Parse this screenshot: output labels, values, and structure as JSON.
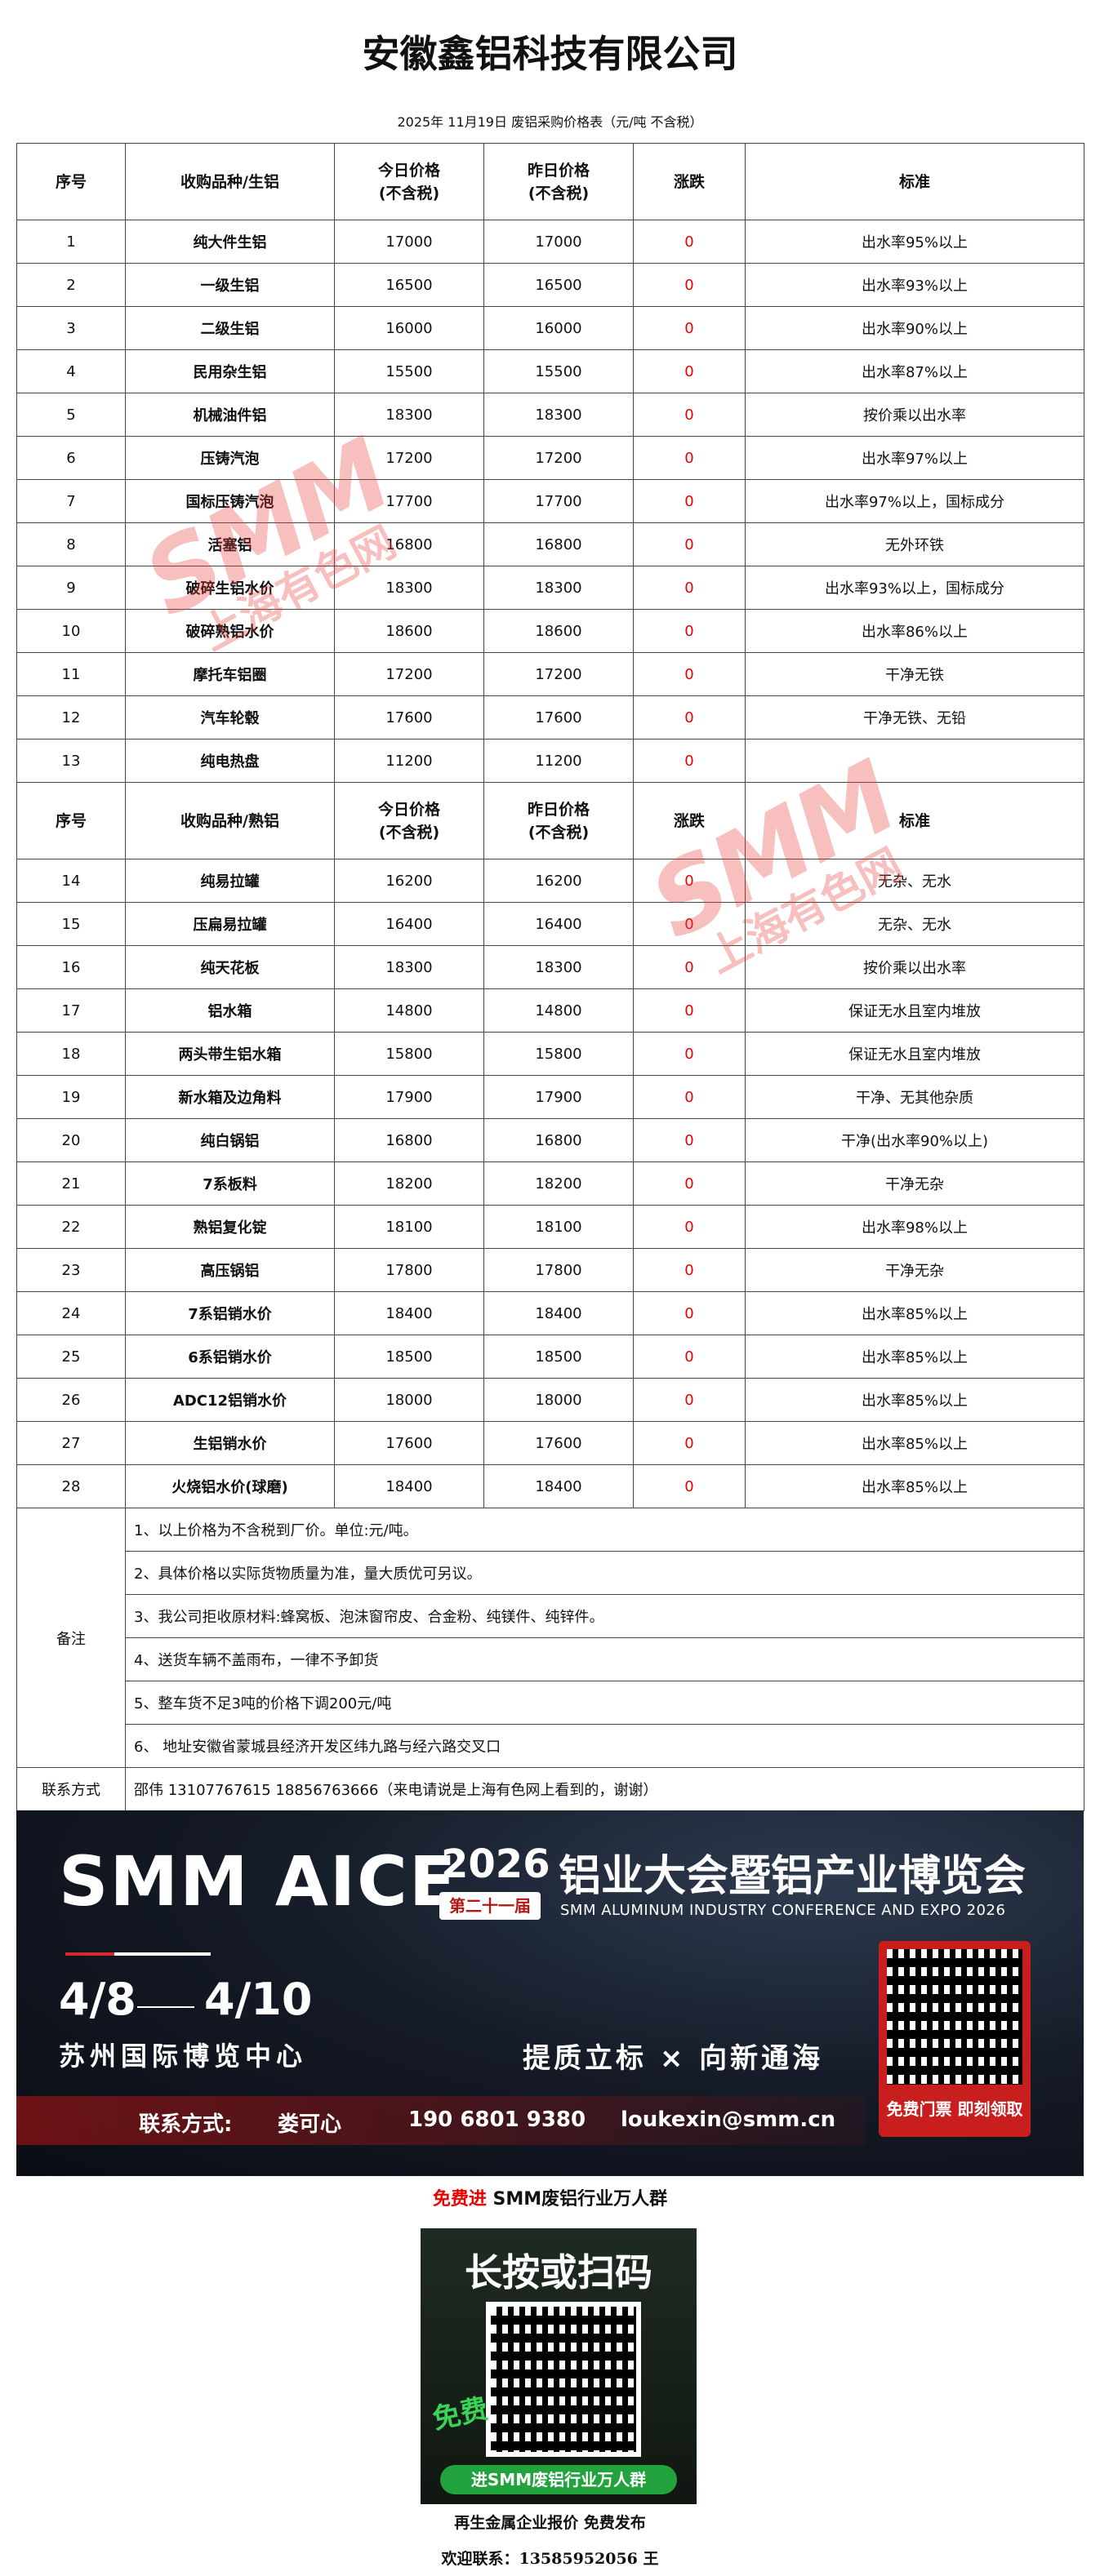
{
  "header": {
    "title": "安徽鑫铝科技有限公司",
    "subtitle": "2025年 11月19日 废铝采购价格表（元/吨  不含税）"
  },
  "table": {
    "columns_raw": {
      "no": "序号",
      "name": "收购品种/生铝",
      "today": [
        "今日价格",
        "(不含税)"
      ],
      "yesterday": [
        "昨日价格",
        "(不含税)"
      ],
      "change": "涨跌",
      "standard": "标准"
    },
    "rows_raw": [
      {
        "no": 1,
        "name": "纯大件生铝",
        "today": 17000,
        "yesterday": 17000,
        "change": 0,
        "standard": "出水率95%以上"
      },
      {
        "no": 2,
        "name": "一级生铝",
        "today": 16500,
        "yesterday": 16500,
        "change": 0,
        "standard": "出水率93%以上"
      },
      {
        "no": 3,
        "name": "二级生铝",
        "today": 16000,
        "yesterday": 16000,
        "change": 0,
        "standard": "出水率90%以上"
      },
      {
        "no": 4,
        "name": "民用杂生铝",
        "today": 15500,
        "yesterday": 15500,
        "change": 0,
        "standard": "出水率87%以上"
      },
      {
        "no": 5,
        "name": "机械油件铝",
        "today": 18300,
        "yesterday": 18300,
        "change": 0,
        "standard": "按价乘以出水率"
      },
      {
        "no": 6,
        "name": "压铸汽泡",
        "today": 17200,
        "yesterday": 17200,
        "change": 0,
        "standard": "出水率97%以上"
      },
      {
        "no": 7,
        "name": "国标压铸汽泡",
        "today": 17700,
        "yesterday": 17700,
        "change": 0,
        "standard": "出水率97%以上，国标成分"
      },
      {
        "no": 8,
        "name": "活塞铝",
        "today": 16800,
        "yesterday": 16800,
        "change": 0,
        "standard": "无外环铁"
      },
      {
        "no": 9,
        "name": "破碎生铝水价",
        "today": 18300,
        "yesterday": 18300,
        "change": 0,
        "standard": "出水率93%以上，国标成分"
      },
      {
        "no": 10,
        "name": "破碎熟铝水价",
        "today": 18600,
        "yesterday": 18600,
        "change": 0,
        "standard": "出水率86%以上"
      },
      {
        "no": 11,
        "name": "摩托车铝圈",
        "today": 17200,
        "yesterday": 17200,
        "change": 0,
        "standard": "干净无铁"
      },
      {
        "no": 12,
        "name": "汽车轮毂",
        "today": 17600,
        "yesterday": 17600,
        "change": 0,
        "standard": "干净无铁、无铅"
      },
      {
        "no": 13,
        "name": "纯电热盘",
        "today": 11200,
        "yesterday": 11200,
        "change": 0
      }
    ],
    "columns_cooked": {
      "no": "序号",
      "name": "收购品种/熟铝",
      "today": [
        "今日价格",
        "(不含税)"
      ],
      "yesterday": [
        "昨日价格",
        "(不含税)"
      ],
      "change": "涨跌",
      "standard": "标准"
    },
    "rows_cooked": [
      {
        "no": 14,
        "name": "纯易拉罐",
        "today": 16200,
        "yesterday": 16200,
        "change": 0,
        "standard": "无杂、无水"
      },
      {
        "no": 15,
        "name": "压扁易拉罐",
        "today": 16400,
        "yesterday": 16400,
        "change": 0,
        "standard": "无杂、无水"
      },
      {
        "no": 16,
        "name": "纯天花板",
        "today": 18300,
        "yesterday": 18300,
        "change": 0,
        "standard": "按价乘以出水率"
      },
      {
        "no": 17,
        "name": "铝水箱",
        "today": 14800,
        "yesterday": 14800,
        "change": 0,
        "standard": "保证无水且室内堆放"
      },
      {
        "no": 18,
        "name": "两头带生铝水箱",
        "today": 15800,
        "yesterday": 15800,
        "change": 0,
        "standard": "保证无水且室内堆放"
      },
      {
        "no": 19,
        "name": "新水箱及边角料",
        "today": 17900,
        "yesterday": 17900,
        "change": 0,
        "standard": "干净、无其他杂质"
      },
      {
        "no": 20,
        "name": "纯白锅铝",
        "today": 16800,
        "yesterday": 16800,
        "change": 0,
        "standard": "干净(出水率90%以上)"
      },
      {
        "no": 21,
        "name": "7系板料",
        "today": 18200,
        "yesterday": 18200,
        "change": 0,
        "standard": "干净无杂"
      },
      {
        "no": 22,
        "name": "熟铝复化锭",
        "today": 18100,
        "yesterday": 18100,
        "change": 0,
        "standard": "出水率98%以上"
      },
      {
        "no": 23,
        "name": "高压锅铝",
        "today": 17800,
        "yesterday": 17800,
        "change": 0,
        "standard": "干净无杂"
      },
      {
        "no": 24,
        "name": "7系铝销水价",
        "today": 18400,
        "yesterday": 18400,
        "change": 0,
        "standard": "出水率85%以上"
      },
      {
        "no": 25,
        "name": "6系铝销水价",
        "today": 18500,
        "yesterday": 18500,
        "change": 0,
        "standard": "出水率85%以上"
      },
      {
        "no": 26,
        "name": "ADC12铝销水价",
        "today": 18000,
        "yesterday": 18000,
        "change": 0,
        "standard": "出水率85%以上"
      },
      {
        "no": 27,
        "name": "生铝销水价",
        "today": 17600,
        "yesterday": 17600,
        "change": 0,
        "standard": "出水率85%以上"
      },
      {
        "no": 28,
        "name": "火烧铝水价(球磨)",
        "today": 18400,
        "yesterday": 18400,
        "change": 0,
        "standard": "出水率85%以上"
      }
    ]
  },
  "notes": {
    "label": "备注",
    "items": [
      "1、以上价格为不含税到厂价。单位:元/吨。",
      "2、具体价格以实际货物质量为准，量大质优可另议。",
      "3、我公司拒收原材料:蜂窝板、泡沫窗帘皮、合金粉、纯镁件、纯锌件。",
      "4、送货车辆不盖雨布，一律不予卸货",
      "5、整车货不足3吨的价格下调200元/吨",
      "6、 地址安徽省蒙城县经济开发区纬九路与经六路交叉口"
    ]
  },
  "contact": {
    "label": "联系方式",
    "text": "邵伟 13107767615 18856763666（来电请说是上海有色网上看到的，谢谢）"
  },
  "watermark": {
    "logo": "SMM",
    "text": "上海有色网"
  },
  "banner": {
    "logo": "SMM AICE",
    "year": "2026",
    "title": "铝业大会暨铝产业博览会",
    "edition": "第二十一届",
    "english": "SMM ALUMINUM INDUSTRY CONFERENCE AND EXPO 2026",
    "date_start": "4/8",
    "date_end": "4/10",
    "venue": "苏州国际博览中心",
    "slogan": "提质立标 × 向新通海",
    "contact_label": "联系方式:",
    "person": "娄可心",
    "phone": "190 6801 9380",
    "email": "loukexin@smm.cn",
    "ticket": "免费门票 即刻领取"
  },
  "footer": {
    "invite_red": "免费进",
    "invite": " SMM废铝行业万人群",
    "poster": {
      "headline": "长按或扫码",
      "badge": "免费",
      "button": "进SMM废铝行业万人群"
    },
    "line1": "再生金属企业报价  免费发布",
    "line2": "欢迎联系：13585952056  王"
  }
}
